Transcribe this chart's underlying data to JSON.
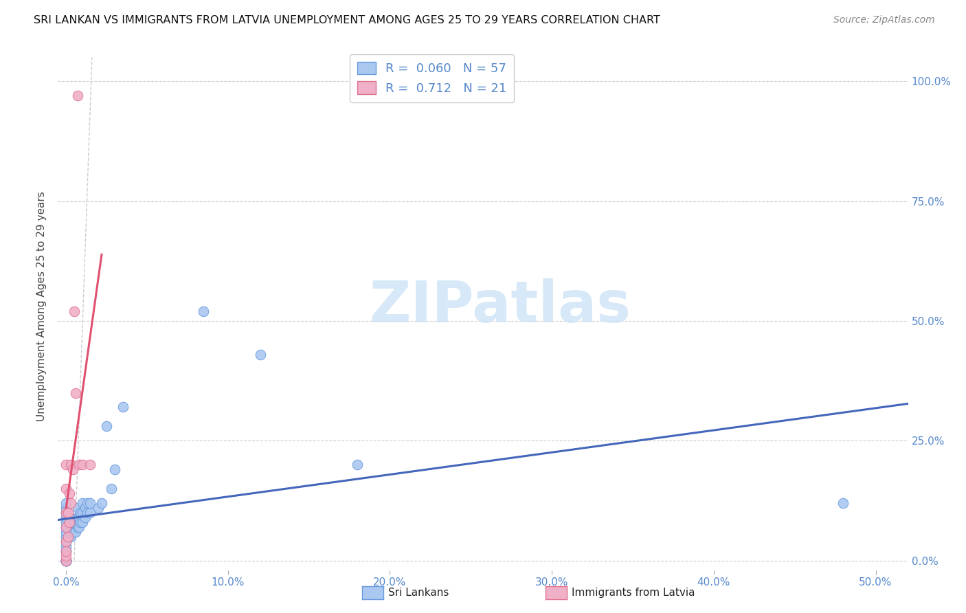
{
  "title": "SRI LANKAN VS IMMIGRANTS FROM LATVIA UNEMPLOYMENT AMONG AGES 25 TO 29 YEARS CORRELATION CHART",
  "source": "Source: ZipAtlas.com",
  "ylabel": "Unemployment Among Ages 25 to 29 years",
  "sri_lankans": {
    "color": "#aac8f0",
    "edge_color": "#6699dd",
    "line_color": "#4466bb",
    "R": 0.06,
    "N": 57,
    "x": [
      0.0,
      0.0,
      0.0,
      0.0,
      0.0,
      0.0,
      0.0,
      0.0,
      0.0,
      0.0,
      0.0,
      0.0,
      0.0,
      0.0,
      0.0,
      0.0,
      0.0,
      0.0,
      0.0,
      0.0,
      0.002,
      0.002,
      0.003,
      0.003,
      0.003,
      0.004,
      0.004,
      0.005,
      0.005,
      0.006,
      0.006,
      0.007,
      0.007,
      0.007,
      0.008,
      0.008,
      0.009,
      0.009,
      0.01,
      0.01,
      0.01,
      0.012,
      0.012,
      0.013,
      0.013,
      0.015,
      0.015,
      0.02,
      0.022,
      0.025,
      0.028,
      0.03,
      0.035,
      0.085,
      0.12,
      0.18,
      0.48
    ],
    "y": [
      0.0,
      0.0,
      0.0,
      0.0,
      0.0,
      0.0,
      0.0,
      0.0,
      0.02,
      0.02,
      0.03,
      0.04,
      0.05,
      0.06,
      0.07,
      0.08,
      0.09,
      0.1,
      0.11,
      0.12,
      0.05,
      0.07,
      0.05,
      0.07,
      0.09,
      0.06,
      0.08,
      0.06,
      0.08,
      0.06,
      0.08,
      0.07,
      0.09,
      0.11,
      0.07,
      0.09,
      0.08,
      0.1,
      0.08,
      0.1,
      0.12,
      0.09,
      0.11,
      0.1,
      0.12,
      0.1,
      0.12,
      0.11,
      0.12,
      0.28,
      0.15,
      0.19,
      0.32,
      0.52,
      0.43,
      0.2,
      0.12
    ]
  },
  "immigrants": {
    "color": "#f0b0c8",
    "edge_color": "#e07090",
    "line_color": "#e05070",
    "R": 0.712,
    "N": 21,
    "x": [
      0.0,
      0.0,
      0.0,
      0.0,
      0.0,
      0.0,
      0.0,
      0.0,
      0.001,
      0.001,
      0.002,
      0.002,
      0.003,
      0.003,
      0.004,
      0.005,
      0.006,
      0.007,
      0.008,
      0.01,
      0.015
    ],
    "y": [
      0.0,
      0.01,
      0.02,
      0.04,
      0.07,
      0.1,
      0.15,
      0.2,
      0.05,
      0.1,
      0.08,
      0.14,
      0.12,
      0.2,
      0.19,
      0.52,
      0.35,
      0.97,
      0.2,
      0.2,
      0.2
    ]
  },
  "background_color": "#ffffff",
  "title_fontsize": 11.5,
  "source_fontsize": 10,
  "watermark_text": "ZIPatlas",
  "watermark_color": "#d0e4f7",
  "xlim": [
    -0.005,
    0.52
  ],
  "ylim": [
    -0.02,
    1.08
  ],
  "x_major_ticks": [
    0.0,
    0.1,
    0.2,
    0.3,
    0.4,
    0.5
  ],
  "x_tick_labels": [
    "0.0%",
    "10.0%",
    "20.0%",
    "30.0%",
    "40.0%",
    "50.0%"
  ],
  "y_ticks": [
    0.0,
    0.25,
    0.5,
    0.75,
    1.0
  ],
  "y_tick_labels_right": [
    "0.0%",
    "25.0%",
    "50.0%",
    "75.0%",
    "100.0%"
  ]
}
